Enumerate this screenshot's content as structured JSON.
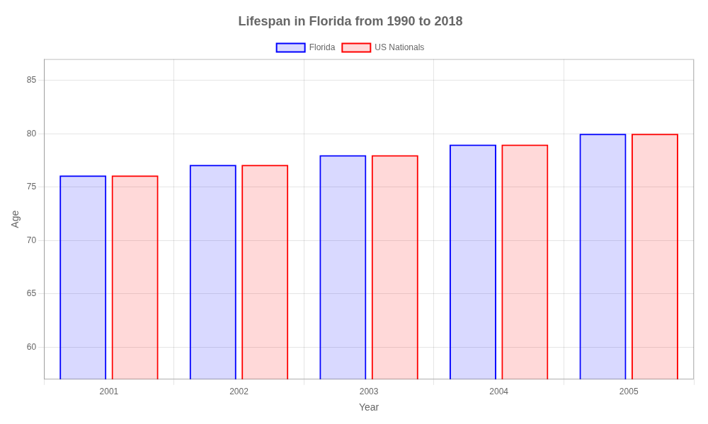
{
  "chart_data": {
    "type": "bar",
    "title": "Lifespan in Florida from 1990 to 2018",
    "x_label": "Year",
    "y_label": "Age",
    "categories": [
      "2001",
      "2002",
      "2003",
      "2004",
      "2005"
    ],
    "series": [
      {
        "name": "Florida",
        "color": "#0000ff",
        "values": [
          76.1,
          77.1,
          78.0,
          79.0,
          80.0
        ]
      },
      {
        "name": "US Nationals",
        "color": "#ff0000",
        "values": [
          76.1,
          77.1,
          78.0,
          79.0,
          80.0
        ]
      }
    ],
    "ylim": [
      57,
      87
    ],
    "yticks": [
      60,
      65,
      70,
      75,
      80,
      85
    ],
    "grid": true,
    "legend": "top"
  }
}
